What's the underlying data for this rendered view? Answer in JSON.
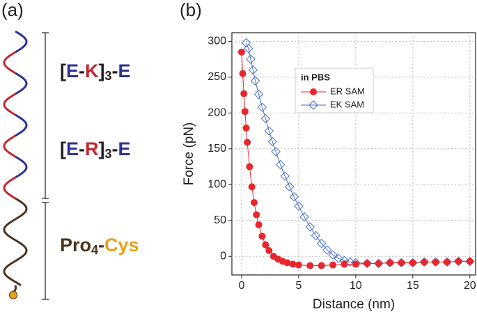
{
  "diagram": {
    "panel_label": "(a)",
    "labels": [
      {
        "parts": [
          {
            "text": "[",
            "color": "#231f20"
          },
          {
            "text": "E",
            "color": "#2e3192"
          },
          {
            "text": "-",
            "color": "#231f20"
          },
          {
            "text": "K",
            "color": "#c1272d"
          },
          {
            "text": "]",
            "color": "#231f20"
          },
          {
            "text": "3",
            "color": "#231f20",
            "sub": true
          },
          {
            "text": "-",
            "color": "#231f20"
          },
          {
            "text": "E",
            "color": "#2e3192"
          }
        ]
      },
      {
        "parts": [
          {
            "text": "[",
            "color": "#231f20"
          },
          {
            "text": "E",
            "color": "#2e3192"
          },
          {
            "text": "-",
            "color": "#231f20"
          },
          {
            "text": "R",
            "color": "#c1272d"
          },
          {
            "text": "]",
            "color": "#231f20"
          },
          {
            "text": "3",
            "color": "#231f20",
            "sub": true
          },
          {
            "text": "-",
            "color": "#231f20"
          },
          {
            "text": "E",
            "color": "#2e3192"
          }
        ]
      },
      {
        "parts": [
          {
            "text": "Pro",
            "color": "#4a3520"
          },
          {
            "text": "4",
            "color": "#4a3520",
            "sub": true
          },
          {
            "text": "-",
            "color": "#4a3520"
          },
          {
            "text": "Cys",
            "color": "#e8a21a"
          }
        ]
      }
    ]
  },
  "chart_data": {
    "type": "scatter",
    "panel_label": "(b)",
    "x_label": "Distance (nm)",
    "y_label": "Force (pN)",
    "xlim": [
      -0.85,
      20.5
    ],
    "ylim": [
      -26,
      312
    ],
    "xticks": [
      0,
      5,
      10,
      15,
      20
    ],
    "yticks": [
      0,
      50,
      100,
      150,
      200,
      250,
      300
    ],
    "grid": true,
    "legend_title": "in PBS",
    "series": [
      {
        "name": "ER SAM",
        "color": "#e8262b",
        "marker": "circle",
        "x": [
          0,
          0.1,
          0.2,
          0.3,
          0.4,
          0.5,
          0.7,
          0.9,
          1.1,
          1.3,
          1.5,
          1.8,
          2.1,
          2.4,
          2.8,
          3.2,
          3.6,
          4,
          4.5,
          5,
          6,
          7,
          8,
          9,
          10,
          11,
          12,
          13,
          14,
          15,
          16,
          17,
          18,
          19,
          20
        ],
        "values": [
          285,
          255,
          227,
          202,
          179,
          159,
          125,
          97,
          75,
          58,
          44,
          28,
          16,
          8,
          0,
          -4,
          -7,
          -9,
          -11,
          -12,
          -13,
          -13,
          -12,
          -11,
          -11,
          -10,
          -10,
          -9,
          -9,
          -9,
          -8,
          -8,
          -8,
          -7,
          -7
        ]
      },
      {
        "name": "EK SAM",
        "color": "#4a6cc4",
        "marker": "diamond",
        "x": [
          0.4,
          0.6,
          0.8,
          1.0,
          1.2,
          1.5,
          1.8,
          2.1,
          2.4,
          2.7,
          3.0,
          3.4,
          3.8,
          4.2,
          4.6,
          5.0,
          5.5,
          6.0,
          6.5,
          7.0,
          7.5,
          8.0,
          8.5,
          9,
          9.5,
          10,
          11,
          12,
          13,
          14,
          15,
          16,
          17,
          18,
          19,
          20
        ],
        "values": [
          298,
          290,
          275,
          260,
          245,
          226,
          208,
          192,
          175,
          160,
          146,
          128,
          112,
          97,
          83,
          70,
          55,
          41,
          29,
          18,
          9,
          2,
          -3,
          -6,
          -8,
          -9,
          -10,
          -10,
          -9,
          -9,
          -9,
          -8,
          -8,
          -8,
          -7,
          -7
        ]
      }
    ]
  }
}
